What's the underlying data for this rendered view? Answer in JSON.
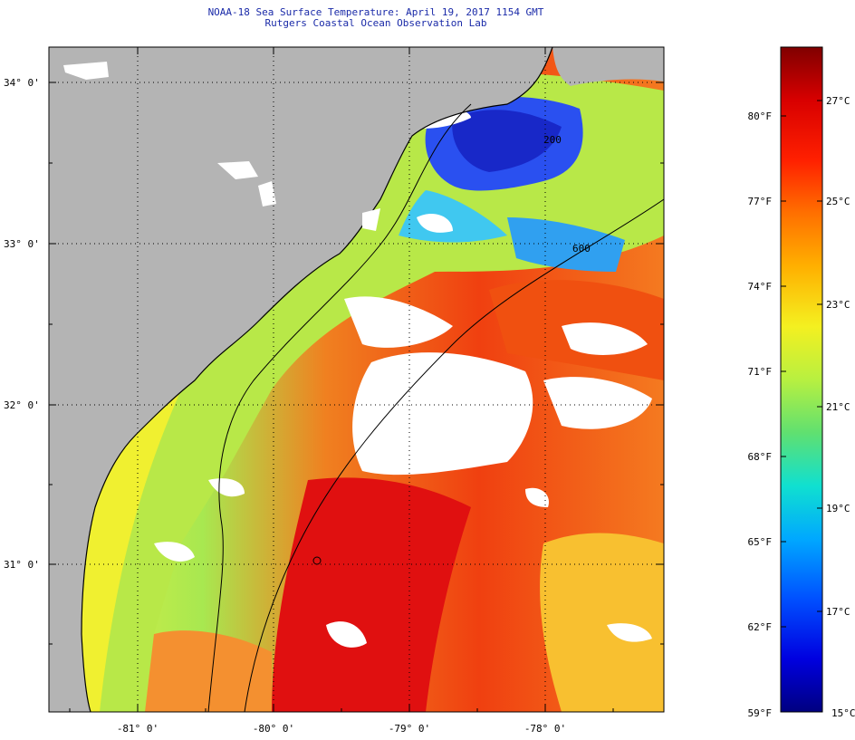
{
  "header": {
    "title": "NOAA-18 Sea Surface Temperature:  April 19, 2017 1154 GMT",
    "subtitle": "Rutgers Coastal Ocean Observation Lab"
  },
  "map": {
    "lat_labels": [
      "34° 0'",
      "33° 0'",
      "32° 0'",
      "31° 0'"
    ],
    "lon_labels": [
      "-81° 0'",
      "-80° 0'",
      "-79° 0'",
      "-78° 0'"
    ],
    "contour_labels": [
      "200",
      "600"
    ],
    "colors": {
      "land": "#b4b4b4",
      "cloud": "#ffffff",
      "graticule": "#000000"
    }
  },
  "colorbar": {
    "fahrenheit_labels": [
      "80°F",
      "77°F",
      "74°F",
      "71°F",
      "68°F",
      "65°F",
      "62°F",
      "59°F"
    ],
    "celsius_labels": [
      "27°C",
      "25°C",
      "23°C",
      "21°C",
      "19°C",
      "17°C",
      "15°C"
    ],
    "range_c": [
      15,
      28
    ],
    "gradient": [
      "#800000",
      "#d80000",
      "#ff2000",
      "#ff7000",
      "#ffb000",
      "#f4f020",
      "#b8f040",
      "#60e070",
      "#10e0d0",
      "#00a8ff",
      "#0050ff",
      "#0000e0",
      "#000080"
    ]
  }
}
